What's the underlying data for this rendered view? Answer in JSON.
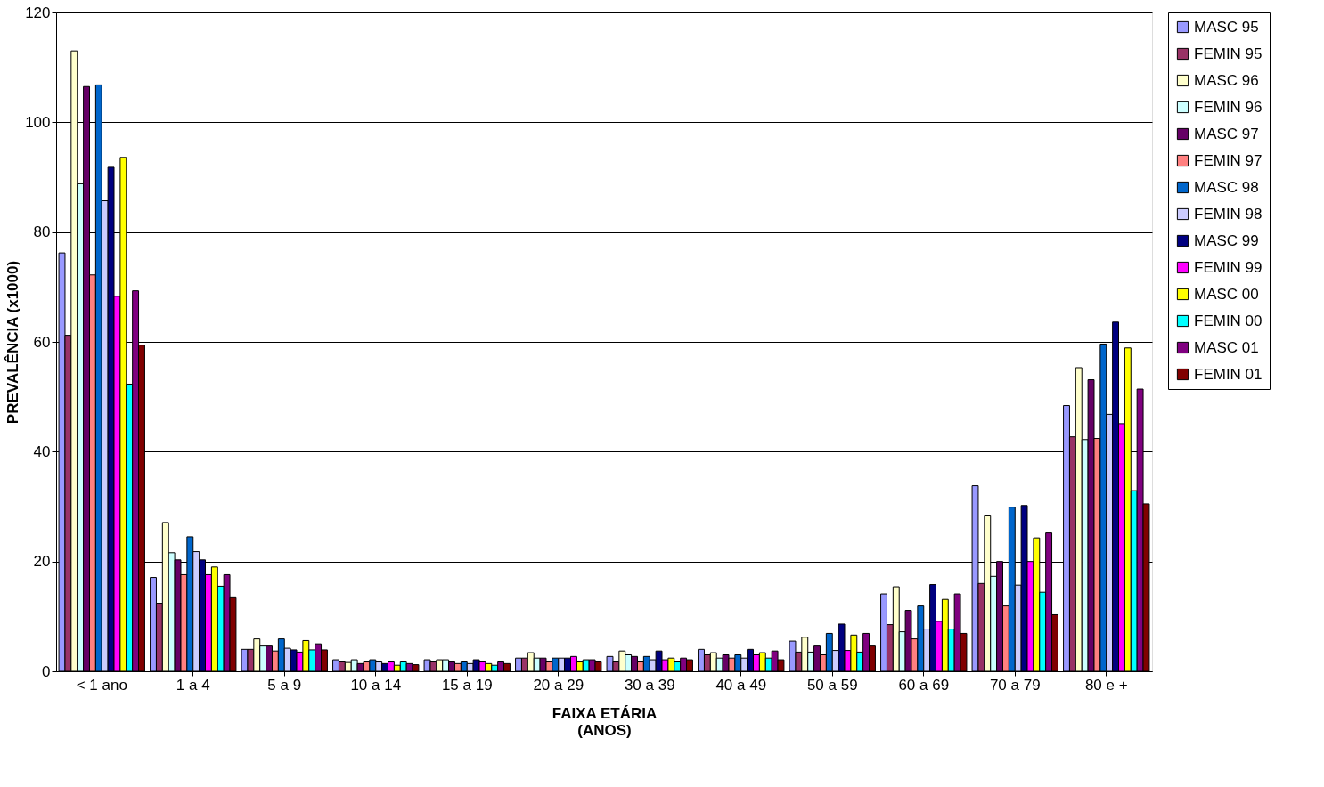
{
  "chart_data": {
    "type": "bar",
    "xlabel": "FAIXA ETÁRIA\n(ANOS)",
    "ylabel": "PREVALÊNCIA (x1000)",
    "categories": [
      "< 1 ano",
      "1 a 4",
      "5 a 9",
      "10 a 14",
      "15 a 19",
      "20 a 29",
      "30 a 39",
      "40 a 49",
      "50 a 59",
      "60 a 69",
      "70 a 79",
      "80 e +"
    ],
    "ylim": [
      0,
      120
    ],
    "yticks": [
      0,
      20,
      40,
      60,
      80,
      100,
      120
    ],
    "grid": "y",
    "legend": "right",
    "series": [
      {
        "name": "MASC 95",
        "color": "#9999ff",
        "values": [
          76.2,
          17.1,
          4,
          2.1,
          2.1,
          2.4,
          2.7,
          4,
          5.5,
          14.1,
          33.8,
          48.4
        ]
      },
      {
        "name": "FEMIN 95",
        "color": "#993366",
        "values": [
          61.2,
          12.4,
          4,
          1.7,
          1.7,
          2.4,
          1.7,
          3,
          3.5,
          8.5,
          16.0,
          42.7
        ]
      },
      {
        "name": "MASC 96",
        "color": "#ffffcc",
        "values": [
          113,
          27.1,
          5.9,
          1.6,
          2.1,
          3.4,
          3.7,
          3.4,
          6.2,
          15.4,
          28.3,
          55.3
        ]
      },
      {
        "name": "FEMIN 96",
        "color": "#ccffff",
        "values": [
          88.8,
          21.6,
          4.6,
          2.1,
          2.1,
          2.4,
          3,
          2.4,
          3.5,
          7.2,
          17.3,
          42.2
        ]
      },
      {
        "name": "MASC 97",
        "color": "#660066",
        "values": [
          106.5,
          20.3,
          4.6,
          1.4,
          1.7,
          2.4,
          2.7,
          3,
          4.6,
          11.1,
          20,
          53.1
        ]
      },
      {
        "name": "FEMIN 97",
        "color": "#ff8080",
        "values": [
          72.2,
          17.6,
          3.7,
          1.7,
          1.4,
          1.7,
          1.7,
          2.4,
          3,
          5.9,
          11.9,
          42.4
        ]
      },
      {
        "name": "MASC 98",
        "color": "#0066cc",
        "values": [
          106.8,
          24.5,
          5.9,
          2.1,
          1.7,
          2.4,
          2.7,
          3,
          6.9,
          11.9,
          29.9,
          59.6
        ]
      },
      {
        "name": "FEMIN 98",
        "color": "#ccccff",
        "values": [
          85.7,
          21.8,
          4.2,
          1.7,
          1.4,
          2.4,
          2.1,
          2.4,
          3.8,
          7.7,
          15.7,
          46.8
        ]
      },
      {
        "name": "MASC 99",
        "color": "#000080",
        "values": [
          91.8,
          20.3,
          3.9,
          1.4,
          2.1,
          2.4,
          3.7,
          4,
          8.6,
          15.8,
          30.2,
          63.6
        ]
      },
      {
        "name": "FEMIN 99",
        "color": "#ff00ff",
        "values": [
          68.3,
          17.6,
          3.5,
          1.7,
          1.7,
          2.7,
          2.1,
          3,
          3.8,
          9.1,
          20,
          45.1
        ]
      },
      {
        "name": "MASC 00",
        "color": "#ffff00",
        "values": [
          93.6,
          19,
          5.6,
          1.1,
          1.4,
          1.7,
          2.4,
          3.4,
          6.6,
          13.1,
          24.3,
          58.9
        ]
      },
      {
        "name": "FEMIN 00",
        "color": "#00ffff",
        "values": [
          52.3,
          15.5,
          3.9,
          1.7,
          1.1,
          2.1,
          1.7,
          2.4,
          3.5,
          7.7,
          14.4,
          32.9
        ]
      },
      {
        "name": "MASC 01",
        "color": "#800080",
        "values": [
          69.3,
          17.6,
          5,
          1.4,
          1.7,
          2.1,
          2.4,
          3.7,
          6.9,
          14.1,
          25.2,
          51.4
        ]
      },
      {
        "name": "FEMIN 01",
        "color": "#800000",
        "values": [
          59.4,
          13.4,
          3.9,
          1.2,
          1.4,
          1.7,
          2.1,
          2.1,
          4.6,
          6.9,
          10.3,
          30.5
        ]
      }
    ]
  }
}
